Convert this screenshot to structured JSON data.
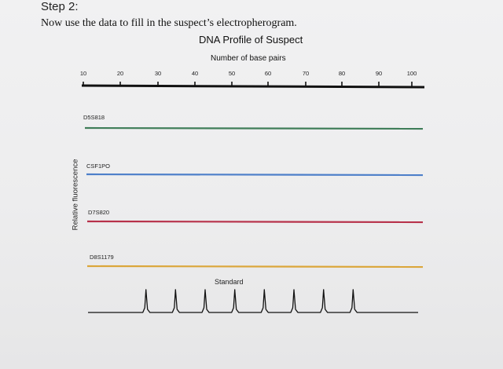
{
  "step_title": "Step 2:",
  "instruction": "Now use the data to fill in the suspect’s electropherogram.",
  "profile_title": "DNA Profile of Suspect",
  "axis": {
    "title": "Number of base pairs",
    "ticks": [
      "10",
      "20",
      "30",
      "40",
      "50",
      "60",
      "70",
      "80",
      "90",
      "100"
    ],
    "min": 10,
    "max": 100
  },
  "y_label": "Relative fluorescence",
  "loci": [
    {
      "label": "D5S818",
      "color": "#3f7d59"
    },
    {
      "label": "CSF1PO",
      "color": "#4d7fc9"
    },
    {
      "label": "D7S820",
      "color": "#b7314a"
    },
    {
      "label": "D8S1179",
      "color": "#dba63a"
    }
  ],
  "standard": {
    "label": "Standard",
    "peaks": [
      20,
      30,
      40,
      50,
      60,
      70,
      80,
      90
    ]
  }
}
